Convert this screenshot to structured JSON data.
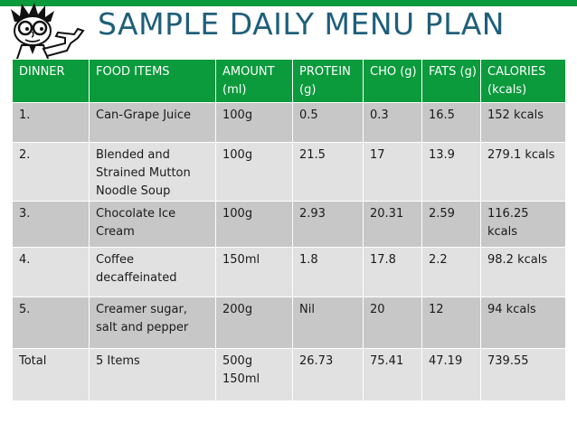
{
  "title": "SAMPLE DAILY MENU PLAN",
  "mascot_icon": "cartoon-man-with-glasses-pointing",
  "colors": {
    "header_bg": "#0b9a3c",
    "title_text": "#1f5f7a",
    "row_light": "#e1e1e1",
    "row_dark": "#c7c7c7"
  },
  "table": {
    "headers": [
      "DINNER",
      "FOOD ITEMS",
      "AMOUNT (ml)",
      "PROTEIN (g)",
      "CHO (g)",
      "FATS (g)",
      "CALORIES (kcals)"
    ],
    "rows": [
      [
        "1.",
        "Can-Grape Juice",
        "100g",
        "0.5",
        "0.3",
        "16.5",
        "152 kcals"
      ],
      [
        "2.",
        "Blended and Strained Mutton Noodle Soup",
        "100g",
        "21.5",
        "17",
        "13.9",
        "279.1 kcals"
      ],
      [
        "3.",
        "Chocolate Ice Cream",
        "100g",
        "2.93",
        "20.31",
        "2.59",
        "116.25 kcals"
      ],
      [
        "4.",
        "Coffee decaffeinated",
        "150ml",
        "1.8",
        "17.8",
        "2.2",
        "98.2 kcals"
      ],
      [
        "5.",
        "Creamer sugar, salt and pepper",
        "200g",
        "Nil",
        "20",
        "12",
        "94 kcals"
      ],
      [
        "Total",
        "5 Items",
        "500g 150ml",
        "26.73",
        "75.41",
        "47.19",
        "739.55"
      ]
    ]
  }
}
